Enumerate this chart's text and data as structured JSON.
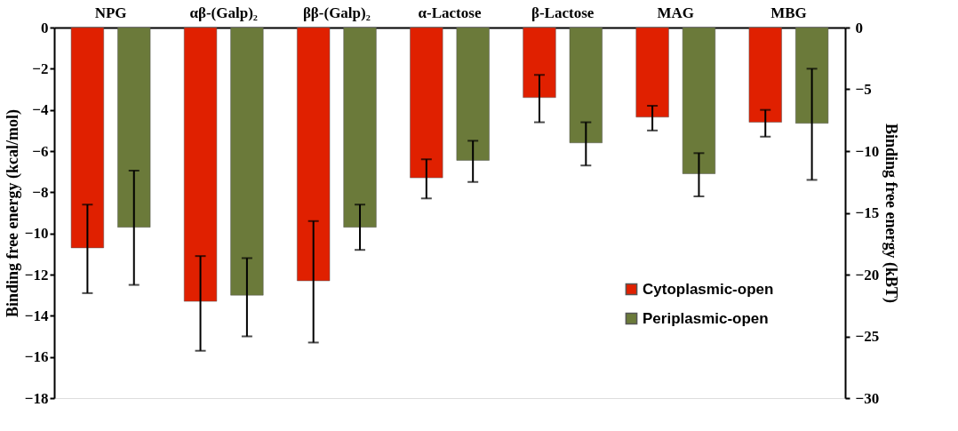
{
  "chart_data": {
    "type": "bar",
    "categories": [
      "NPG",
      "αβ-(Galp)₂",
      "ββ-(Galp)₂",
      "α-Lactose",
      "β-Lactose",
      "MAG",
      "MBG"
    ],
    "series": [
      {
        "name": "Cytoplasmic-open",
        "color": "#e02000",
        "values": [
          -10.7,
          -13.3,
          -12.3,
          -7.3,
          -3.4,
          -4.35,
          -4.6
        ],
        "errors": [
          [
            -12.9,
            -8.6
          ],
          [
            -15.7,
            -11.1
          ],
          [
            -15.3,
            -9.4
          ],
          [
            -8.3,
            -6.4
          ],
          [
            -4.6,
            -2.3
          ],
          [
            -5.0,
            -3.8
          ],
          [
            -5.3,
            -4.0
          ]
        ]
      },
      {
        "name": "Periplasmic-open",
        "color": "#6b7a3a",
        "values": [
          -9.7,
          -13.0,
          -9.7,
          -6.45,
          -5.6,
          -7.1,
          -4.65
        ],
        "errors": [
          [
            -12.5,
            -6.95
          ],
          [
            -15.0,
            -11.2
          ],
          [
            -10.8,
            -8.6
          ],
          [
            -7.5,
            -5.5
          ],
          [
            -6.7,
            -4.6
          ],
          [
            -8.2,
            -6.1
          ],
          [
            -7.4,
            -2.0
          ]
        ]
      }
    ],
    "ylabel": "Binding free energy (kcal/mol)",
    "y2label": "Binding free energy (kBT)",
    "ylim": [
      -18,
      0
    ],
    "yticks": [
      0,
      -2,
      -4,
      -6,
      -8,
      -10,
      -12,
      -14,
      -16,
      -18
    ],
    "y2lim": [
      -30,
      0
    ],
    "y2ticks": [
      0,
      -5,
      -10,
      -15,
      -20,
      -25,
      -30
    ],
    "grid": false,
    "legend": "bottom right"
  }
}
